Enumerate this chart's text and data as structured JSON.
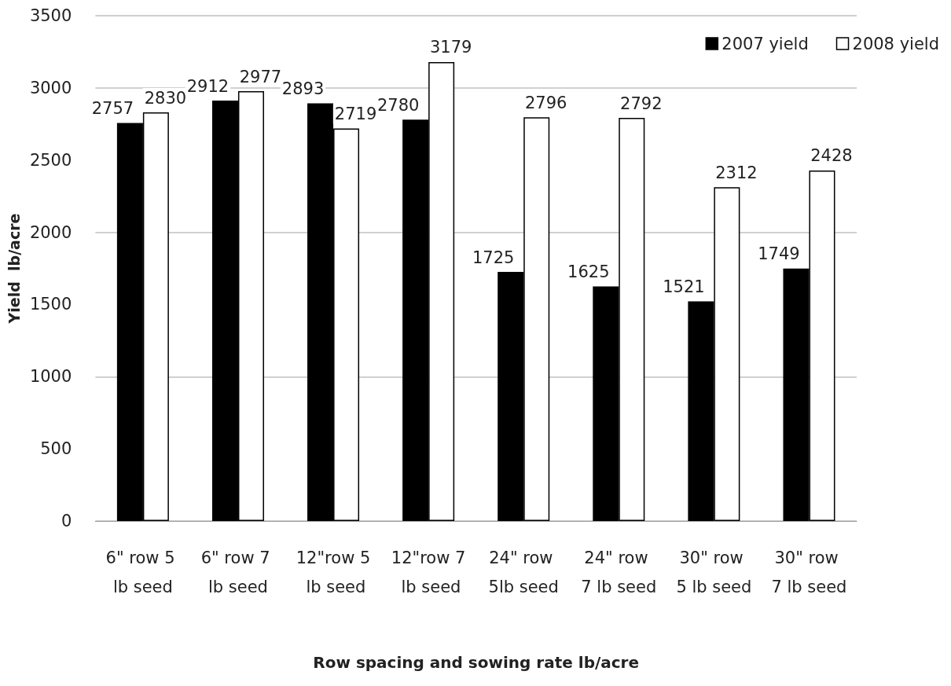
{
  "chart_data": {
    "type": "bar",
    "xlabel": "Row spacing and sowing rate lb/acre",
    "ylabel": "Yield  lb/acre",
    "categories": [
      "6\" row 5 lb seed",
      "6\" row 7 lb seed",
      "12\"row 5 lb seed",
      "12\"row 7 lb seed",
      "24\" row 5lb seed",
      "24\" row 7 lb seed",
      "30\" row 5 lb seed",
      "30\" row 7 lb seed"
    ],
    "series": [
      {
        "name": "2007 yield",
        "color": "#000000",
        "values": [
          2757,
          2912,
          2893,
          2780,
          1725,
          1625,
          1521,
          1749
        ]
      },
      {
        "name": "2008 yield",
        "color": "#ffffff",
        "values": [
          2830,
          2977,
          2719,
          3179,
          2796,
          2792,
          2312,
          2428
        ]
      }
    ],
    "ylim": [
      0,
      3500
    ],
    "yticks": [
      0,
      500,
      1000,
      1500,
      2000,
      2500,
      3000,
      3500
    ],
    "grid": "y",
    "legend": "top right",
    "data_labels": true
  }
}
